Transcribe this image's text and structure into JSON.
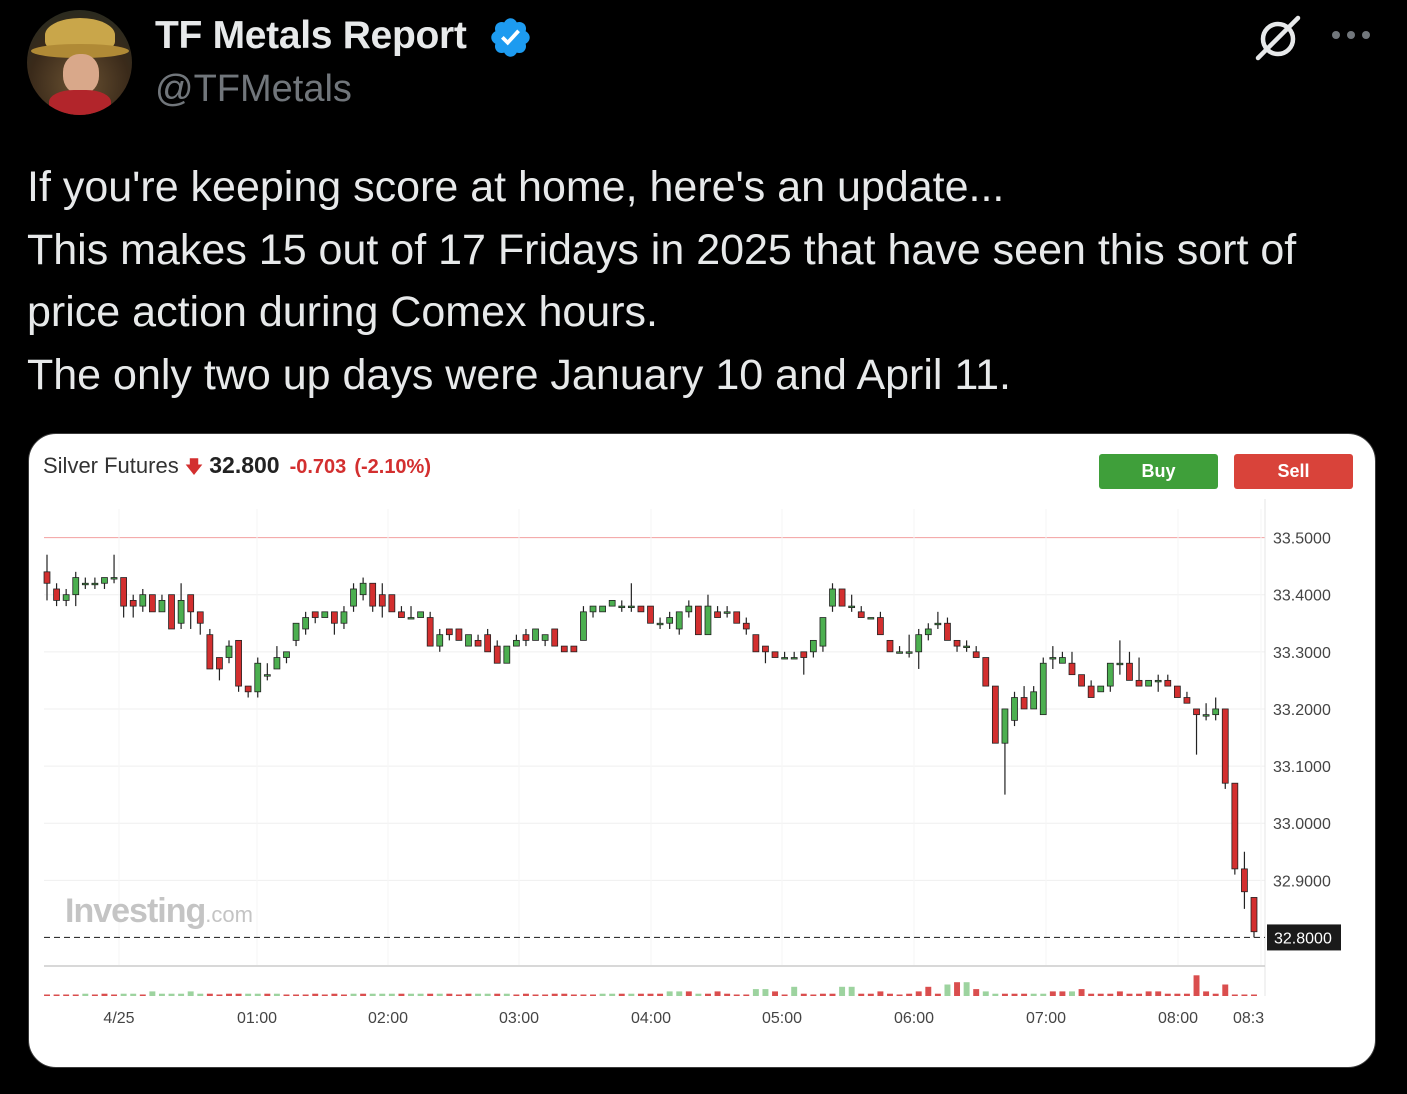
{
  "tweet": {
    "author_name": "TF Metals Report",
    "handle": "@TFMetals",
    "text_lines": [
      "If you're keeping score at home, here's an update...",
      "This makes 15 out of 17 Fridays in 2025 that have seen this sort of",
      "price action during Comex hours.",
      "The only two up days were January 10 and April 11."
    ],
    "icons": [
      "verified-badge-icon",
      "grok-icon",
      "more-icon"
    ]
  },
  "card": {
    "instrument": "Silver Futures",
    "last_price": "32.800",
    "change": "-0.703",
    "change_pct": "(-2.10%)",
    "buy_label": "Buy",
    "sell_label": "Sell",
    "watermark": "Investing",
    "watermark_suffix": ".com",
    "colors": {
      "up": "#4caf50",
      "down": "#d32f2f",
      "buy": "#3f9f3a",
      "sell": "#d9433a"
    }
  },
  "chart_data": {
    "type": "candlestick",
    "y_ticks": [
      "33.5000",
      "33.4000",
      "33.3000",
      "33.2000",
      "33.1000",
      "33.0000",
      "32.9000"
    ],
    "y_range": [
      32.75,
      33.55
    ],
    "last_price_label": "32.8000",
    "x_ticks": [
      "4/25",
      "01:00",
      "02:00",
      "03:00",
      "04:00",
      "05:00",
      "06:00",
      "07:00",
      "08:00",
      "08:3"
    ],
    "grid": true,
    "candles": [
      [
        33.44,
        33.47,
        33.39,
        33.42
      ],
      [
        33.41,
        33.42,
        33.38,
        33.39
      ],
      [
        33.39,
        33.41,
        33.38,
        33.4
      ],
      [
        33.4,
        33.44,
        33.38,
        33.43
      ],
      [
        33.42,
        33.43,
        33.41,
        33.42
      ],
      [
        33.42,
        33.43,
        33.41,
        33.42
      ],
      [
        33.42,
        33.43,
        33.41,
        33.43
      ],
      [
        33.43,
        33.47,
        33.42,
        33.43
      ],
      [
        33.43,
        33.43,
        33.36,
        33.38
      ],
      [
        33.39,
        33.4,
        33.36,
        33.38
      ],
      [
        33.38,
        33.41,
        33.37,
        33.4
      ],
      [
        33.4,
        33.4,
        33.37,
        33.37
      ],
      [
        33.37,
        33.4,
        33.37,
        33.39
      ],
      [
        33.4,
        33.4,
        33.34,
        33.34
      ],
      [
        33.35,
        33.42,
        33.34,
        33.39
      ],
      [
        33.4,
        33.4,
        33.34,
        33.37
      ],
      [
        33.37,
        33.37,
        33.33,
        33.35
      ],
      [
        33.33,
        33.34,
        33.27,
        33.27
      ],
      [
        33.29,
        33.29,
        33.25,
        33.27
      ],
      [
        33.29,
        33.32,
        33.28,
        33.31
      ],
      [
        33.32,
        33.32,
        33.23,
        33.24
      ],
      [
        33.24,
        33.24,
        33.22,
        33.23
      ],
      [
        33.23,
        33.29,
        33.22,
        33.28
      ],
      [
        33.26,
        33.28,
        33.25,
        33.26
      ],
      [
        33.27,
        33.31,
        33.27,
        33.29
      ],
      [
        33.29,
        33.3,
        33.28,
        33.3
      ],
      [
        33.32,
        33.35,
        33.31,
        33.35
      ],
      [
        33.34,
        33.37,
        33.33,
        33.36
      ],
      [
        33.37,
        33.37,
        33.35,
        33.36
      ],
      [
        33.36,
        33.37,
        33.36,
        33.37
      ],
      [
        33.37,
        33.37,
        33.33,
        33.35
      ],
      [
        33.35,
        33.38,
        33.34,
        33.37
      ],
      [
        33.38,
        33.42,
        33.37,
        33.41
      ],
      [
        33.4,
        33.43,
        33.39,
        33.42
      ],
      [
        33.42,
        33.42,
        33.37,
        33.38
      ],
      [
        33.4,
        33.42,
        33.36,
        33.38
      ],
      [
        33.4,
        33.4,
        33.37,
        33.37
      ],
      [
        33.37,
        33.38,
        33.36,
        33.36
      ],
      [
        33.36,
        33.38,
        33.36,
        33.36
      ],
      [
        33.36,
        33.37,
        33.36,
        33.37
      ],
      [
        33.36,
        33.37,
        33.31,
        33.31
      ],
      [
        33.31,
        33.34,
        33.3,
        33.33
      ],
      [
        33.34,
        33.34,
        33.32,
        33.33
      ],
      [
        33.34,
        33.34,
        33.32,
        33.32
      ],
      [
        33.31,
        33.33,
        33.31,
        33.33
      ],
      [
        33.32,
        33.33,
        33.31,
        33.31
      ],
      [
        33.33,
        33.34,
        33.3,
        33.3
      ],
      [
        33.31,
        33.32,
        33.28,
        33.28
      ],
      [
        33.28,
        33.31,
        33.28,
        33.31
      ],
      [
        33.31,
        33.33,
        33.31,
        33.32
      ],
      [
        33.33,
        33.34,
        33.31,
        33.32
      ],
      [
        33.32,
        33.34,
        33.32,
        33.34
      ],
      [
        33.32,
        33.33,
        33.31,
        33.33
      ],
      [
        33.34,
        33.34,
        33.31,
        33.31
      ],
      [
        33.31,
        33.31,
        33.3,
        33.3
      ],
      [
        33.31,
        33.31,
        33.3,
        33.3
      ],
      [
        33.32,
        33.38,
        33.32,
        33.37
      ],
      [
        33.37,
        33.38,
        33.36,
        33.38
      ],
      [
        33.37,
        33.38,
        33.37,
        33.38
      ],
      [
        33.38,
        33.39,
        33.38,
        33.39
      ],
      [
        33.38,
        33.39,
        33.37,
        33.38
      ],
      [
        33.38,
        33.42,
        33.37,
        33.38
      ],
      [
        33.38,
        33.38,
        33.37,
        33.37
      ],
      [
        33.38,
        33.38,
        33.35,
        33.35
      ],
      [
        33.35,
        33.36,
        33.34,
        33.35
      ],
      [
        33.35,
        33.37,
        33.34,
        33.36
      ],
      [
        33.34,
        33.37,
        33.33,
        33.37
      ],
      [
        33.37,
        33.39,
        33.36,
        33.38
      ],
      [
        33.38,
        33.38,
        33.33,
        33.33
      ],
      [
        33.33,
        33.4,
        33.33,
        33.38
      ],
      [
        33.37,
        33.38,
        33.36,
        33.36
      ],
      [
        33.37,
        33.38,
        33.36,
        33.37
      ],
      [
        33.37,
        33.37,
        33.35,
        33.35
      ],
      [
        33.35,
        33.36,
        33.33,
        33.34
      ],
      [
        33.33,
        33.33,
        33.3,
        33.3
      ],
      [
        33.31,
        33.31,
        33.28,
        33.3
      ],
      [
        33.3,
        33.3,
        33.29,
        33.29
      ],
      [
        33.29,
        33.3,
        33.29,
        33.29
      ],
      [
        33.29,
        33.3,
        33.29,
        33.29
      ],
      [
        33.3,
        33.3,
        33.26,
        33.29
      ],
      [
        33.3,
        33.32,
        33.29,
        33.32
      ],
      [
        33.31,
        33.36,
        33.3,
        33.36
      ],
      [
        33.38,
        33.42,
        33.37,
        33.41
      ],
      [
        33.41,
        33.41,
        33.38,
        33.38
      ],
      [
        33.38,
        33.4,
        33.37,
        33.38
      ],
      [
        33.37,
        33.38,
        33.36,
        33.36
      ],
      [
        33.36,
        33.36,
        33.36,
        33.36
      ],
      [
        33.36,
        33.37,
        33.33,
        33.33
      ],
      [
        33.32,
        33.32,
        33.3,
        33.3
      ],
      [
        33.3,
        33.31,
        33.3,
        33.3
      ],
      [
        33.3,
        33.33,
        33.29,
        33.3
      ],
      [
        33.3,
        33.34,
        33.27,
        33.33
      ],
      [
        33.33,
        33.35,
        33.32,
        33.34
      ],
      [
        33.35,
        33.37,
        33.34,
        33.35
      ],
      [
        33.35,
        33.36,
        33.32,
        33.32
      ],
      [
        33.32,
        33.32,
        33.3,
        33.31
      ],
      [
        33.31,
        33.32,
        33.3,
        33.31
      ],
      [
        33.3,
        33.31,
        33.29,
        33.29
      ],
      [
        33.29,
        33.29,
        33.24,
        33.24
      ],
      [
        33.24,
        33.24,
        33.14,
        33.14
      ],
      [
        33.14,
        33.2,
        33.05,
        33.2
      ],
      [
        33.18,
        33.23,
        33.17,
        33.22
      ],
      [
        33.22,
        33.24,
        33.2,
        33.2
      ],
      [
        33.2,
        33.24,
        33.2,
        33.23
      ],
      [
        33.19,
        33.29,
        33.19,
        33.28
      ],
      [
        33.29,
        33.31,
        33.27,
        33.29
      ],
      [
        33.28,
        33.3,
        33.28,
        33.29
      ],
      [
        33.28,
        33.3,
        33.26,
        33.26
      ],
      [
        33.26,
        33.26,
        33.24,
        33.24
      ],
      [
        33.24,
        33.25,
        33.22,
        33.22
      ],
      [
        33.23,
        33.24,
        33.23,
        33.24
      ],
      [
        33.24,
        33.28,
        33.23,
        33.28
      ],
      [
        33.28,
        33.32,
        33.26,
        33.28
      ],
      [
        33.28,
        33.3,
        33.25,
        33.25
      ],
      [
        33.25,
        33.29,
        33.24,
        33.24
      ],
      [
        33.24,
        33.25,
        33.24,
        33.25
      ],
      [
        33.25,
        33.26,
        33.23,
        33.25
      ],
      [
        33.25,
        33.26,
        33.24,
        33.24
      ],
      [
        33.24,
        33.24,
        33.22,
        33.22
      ],
      [
        33.22,
        33.23,
        33.21,
        33.21
      ],
      [
        33.2,
        33.2,
        33.12,
        33.19
      ],
      [
        33.19,
        33.21,
        33.18,
        33.19
      ],
      [
        33.19,
        33.22,
        33.18,
        33.2
      ],
      [
        33.2,
        33.2,
        33.06,
        33.07
      ],
      [
        33.07,
        33.07,
        32.91,
        32.92
      ],
      [
        32.92,
        32.95,
        32.85,
        32.88
      ],
      [
        32.87,
        32.87,
        32.8,
        32.81
      ]
    ],
    "volume": [
      [
        0,
        0
      ],
      [
        0,
        0
      ],
      [
        0,
        0
      ],
      [
        0,
        0
      ],
      [
        1,
        1
      ],
      [
        0,
        0
      ],
      [
        0,
        1
      ],
      [
        0,
        0
      ],
      [
        1,
        1
      ],
      [
        1,
        1
      ],
      [
        0,
        0
      ],
      [
        1,
        2
      ],
      [
        1,
        1
      ],
      [
        1,
        1
      ],
      [
        1,
        1
      ],
      [
        1,
        2
      ],
      [
        1,
        1
      ],
      [
        0,
        1
      ],
      [
        0,
        0
      ],
      [
        0,
        1
      ],
      [
        0,
        1
      ],
      [
        1,
        1
      ],
      [
        1,
        1
      ],
      [
        0,
        1
      ],
      [
        1,
        1
      ],
      [
        0,
        0
      ],
      [
        0,
        0
      ],
      [
        0,
        0
      ],
      [
        0,
        1
      ],
      [
        0,
        0
      ],
      [
        0,
        1
      ],
      [
        0,
        0
      ],
      [
        1,
        1
      ],
      [
        0,
        1
      ],
      [
        1,
        1
      ],
      [
        1,
        1
      ],
      [
        1,
        1
      ],
      [
        0,
        1
      ],
      [
        1,
        1
      ],
      [
        1,
        1
      ],
      [
        0,
        1
      ],
      [
        1,
        1
      ],
      [
        0,
        1
      ],
      [
        0,
        0
      ],
      [
        0,
        1
      ],
      [
        1,
        1
      ],
      [
        1,
        1
      ],
      [
        0,
        1
      ],
      [
        1,
        1
      ],
      [
        0,
        0
      ],
      [
        0,
        1
      ],
      [
        0,
        0
      ],
      [
        0,
        0
      ],
      [
        0,
        1
      ],
      [
        0,
        1
      ],
      [
        0,
        0
      ],
      [
        0,
        0
      ],
      [
        0,
        0
      ],
      [
        1,
        1
      ],
      [
        1,
        1
      ],
      [
        0,
        1
      ],
      [
        1,
        1
      ],
      [
        0,
        1
      ],
      [
        0,
        1
      ],
      [
        0,
        1
      ],
      [
        1,
        2
      ],
      [
        1,
        2
      ],
      [
        0,
        2
      ],
      [
        1,
        1
      ],
      [
        0,
        1
      ],
      [
        0,
        2
      ],
      [
        0,
        1
      ],
      [
        0,
        0
      ],
      [
        0,
        0
      ],
      [
        1,
        3
      ],
      [
        1,
        3
      ],
      [
        0,
        2
      ],
      [
        0,
        0
      ],
      [
        1,
        4
      ],
      [
        0,
        1
      ],
      [
        0,
        0
      ],
      [
        0,
        1
      ],
      [
        0,
        1
      ],
      [
        1,
        4
      ],
      [
        1,
        4
      ],
      [
        0,
        1
      ],
      [
        0,
        1
      ],
      [
        0,
        2
      ],
      [
        0,
        1
      ],
      [
        0,
        0
      ],
      [
        0,
        1
      ],
      [
        0,
        2
      ],
      [
        0,
        4
      ],
      [
        0,
        1
      ],
      [
        1,
        5
      ],
      [
        0,
        6
      ],
      [
        1,
        6
      ],
      [
        0,
        3
      ],
      [
        1,
        2
      ],
      [
        1,
        1
      ],
      [
        0,
        1
      ],
      [
        0,
        1
      ],
      [
        0,
        1
      ],
      [
        1,
        1
      ],
      [
        1,
        1
      ],
      [
        0,
        2
      ],
      [
        0,
        2
      ],
      [
        1,
        2
      ],
      [
        0,
        3
      ],
      [
        0,
        1
      ],
      [
        0,
        1
      ],
      [
        0,
        1
      ],
      [
        0,
        2
      ],
      [
        0,
        1
      ],
      [
        0,
        1
      ],
      [
        0,
        2
      ],
      [
        0,
        2
      ],
      [
        0,
        1
      ],
      [
        0,
        1
      ],
      [
        0,
        1
      ],
      [
        0,
        9
      ],
      [
        0,
        2
      ],
      [
        0,
        1
      ],
      [
        0,
        5
      ],
      [
        0,
        0
      ],
      [
        0,
        0
      ],
      [
        0,
        0
      ]
    ]
  }
}
